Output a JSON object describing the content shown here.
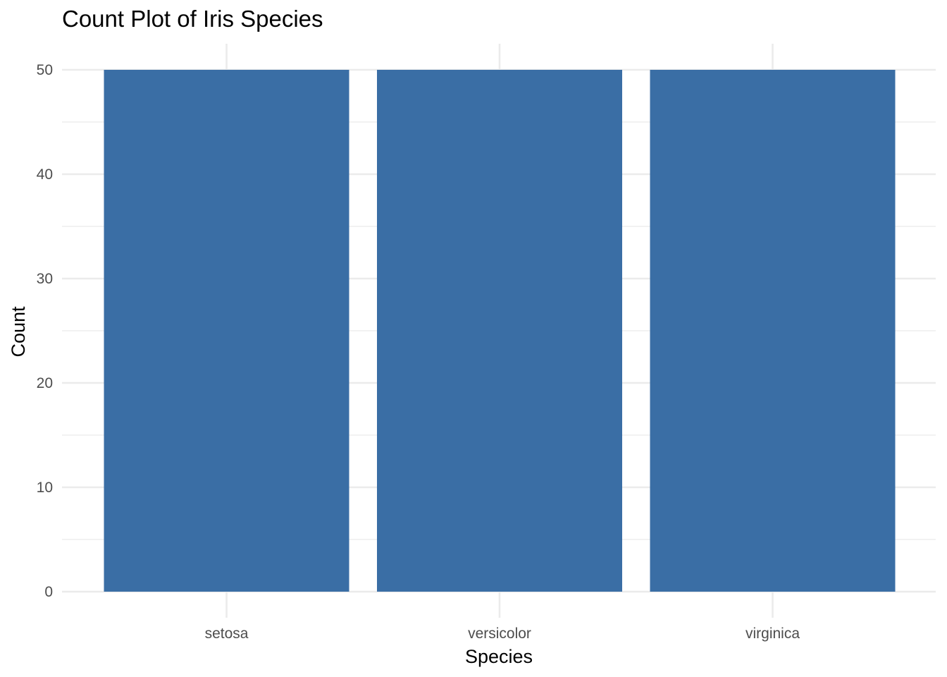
{
  "chart_data": {
    "type": "bar",
    "title": "Count Plot of Iris Species",
    "xlabel": "Species",
    "ylabel": "Count",
    "categories": [
      "setosa",
      "versicolor",
      "virginica"
    ],
    "values": [
      50,
      50,
      50
    ],
    "ylim": [
      0,
      52.5
    ],
    "yticks": [
      0,
      10,
      20,
      30,
      40,
      50
    ],
    "grid": true,
    "legend": "none",
    "bar_color": "#3A6EA5",
    "grid_color": "#EBEBEB"
  }
}
